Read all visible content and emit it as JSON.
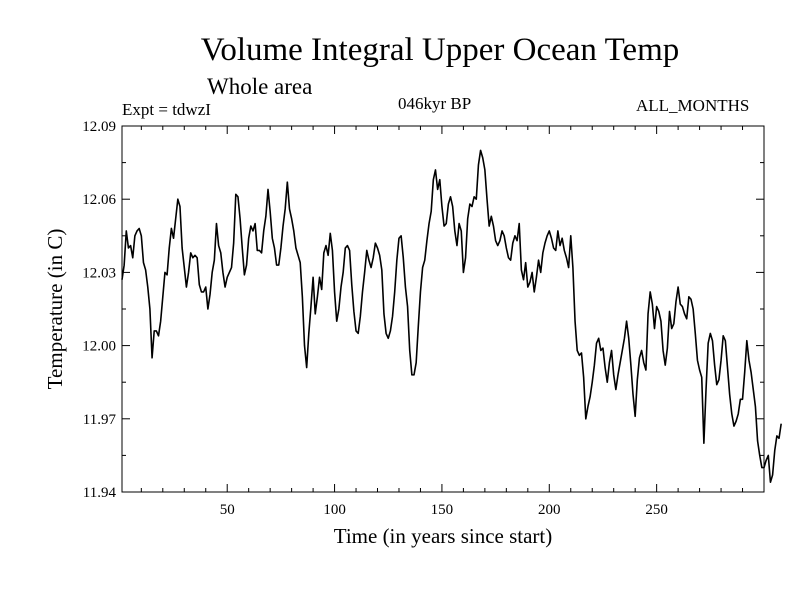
{
  "header": {
    "title": "Volume Integral Upper Ocean Temp",
    "subtitle": "Whole area",
    "left_label": "Expt = tdwzI",
    "center_label": "046kyr BP",
    "right_label": "ALL_MONTHS"
  },
  "chart_data": {
    "type": "line",
    "title": "Volume Integral Upper Ocean Temp",
    "subtitle": "Whole area",
    "xlabel": "Time (in years since start)",
    "ylabel": "Temperature (in C)",
    "xlim": [
      1,
      300
    ],
    "ylim": [
      11.94,
      12.09
    ],
    "x_ticks": [
      50,
      100,
      150,
      200,
      250
    ],
    "y_ticks": [
      11.94,
      11.97,
      12.0,
      12.03,
      12.06,
      12.09
    ],
    "y_tick_labels": [
      "11.94",
      "11.97",
      "12.00",
      "12.03",
      "12.06",
      "12.09"
    ],
    "grid": false,
    "line_color": "#000000",
    "series": [
      {
        "x_start": 1,
        "x_step": 1,
        "values": [
          12.027,
          12.033,
          12.047,
          12.04,
          12.041,
          12.036,
          12.045,
          12.047,
          12.048,
          12.045,
          12.034,
          12.031,
          12.024,
          12.015,
          11.995,
          12.006,
          12.006,
          12.004,
          12.01,
          12.02,
          12.03,
          12.029,
          12.04,
          12.048,
          12.044,
          12.052,
          12.06,
          12.057,
          12.04,
          12.032,
          12.024,
          12.03,
          12.038,
          12.036,
          12.037,
          12.036,
          12.025,
          12.022,
          12.022,
          12.024,
          12.015,
          12.021,
          12.03,
          12.035,
          12.05,
          12.041,
          12.038,
          12.03,
          12.024,
          12.028,
          12.03,
          12.032,
          12.042,
          12.062,
          12.061,
          12.052,
          12.04,
          12.029,
          12.033,
          12.044,
          12.049,
          12.047,
          12.05,
          12.039,
          12.039,
          12.038,
          12.047,
          12.053,
          12.064,
          12.055,
          12.044,
          12.04,
          12.033,
          12.033,
          12.04,
          12.049,
          12.056,
          12.067,
          12.056,
          12.052,
          12.047,
          12.04,
          12.037,
          12.034,
          12.02,
          12.0,
          11.991,
          12.005,
          12.016,
          12.028,
          12.013,
          12.02,
          12.028,
          12.023,
          12.038,
          12.041,
          12.037,
          12.046,
          12.039,
          12.022,
          12.01,
          12.015,
          12.024,
          12.03,
          12.04,
          12.041,
          12.039,
          12.025,
          12.014,
          12.006,
          12.005,
          12.012,
          12.022,
          12.03,
          12.039,
          12.035,
          12.032,
          12.036,
          12.042,
          12.04,
          12.037,
          12.031,
          12.013,
          12.005,
          12.003,
          12.006,
          12.012,
          12.022,
          12.035,
          12.044,
          12.045,
          12.036,
          12.024,
          12.016,
          11.998,
          11.988,
          11.988,
          11.993,
          12.008,
          12.022,
          12.032,
          12.035,
          12.043,
          12.05,
          12.055,
          12.068,
          12.072,
          12.064,
          12.068,
          12.057,
          12.049,
          12.05,
          12.058,
          12.061,
          12.057,
          12.047,
          12.041,
          12.05,
          12.047,
          12.03,
          12.036,
          12.052,
          12.058,
          12.057,
          12.061,
          12.06,
          12.074,
          12.08,
          12.077,
          12.072,
          12.06,
          12.049,
          12.053,
          12.049,
          12.043,
          12.041,
          12.043,
          12.047,
          12.045,
          12.04,
          12.036,
          12.035,
          12.042,
          12.045,
          12.043,
          12.05,
          12.031,
          12.027,
          12.034,
          12.024,
          12.026,
          12.03,
          12.022,
          12.028,
          12.035,
          12.03,
          12.038,
          12.042,
          12.045,
          12.047,
          12.044,
          12.04,
          12.039,
          12.047,
          12.041,
          12.044,
          12.039,
          12.036,
          12.032,
          12.045,
          12.032,
          12.01,
          11.998,
          11.996,
          11.997,
          11.987,
          11.97,
          11.975,
          11.979,
          11.985,
          11.992,
          12.001,
          12.003,
          11.998,
          11.999,
          11.991,
          11.985,
          11.993,
          11.998,
          11.988,
          11.982,
          11.988,
          11.993,
          11.998,
          12.003,
          12.01,
          12.003,
          11.992,
          11.98,
          11.971,
          11.986,
          11.995,
          11.998,
          11.993,
          11.99,
          12.013,
          12.022,
          12.017,
          12.007,
          12.016,
          12.014,
          12.01,
          11.998,
          11.992,
          11.999,
          12.014,
          12.007,
          12.009,
          12.018,
          12.024,
          12.017,
          12.016,
          12.013,
          12.011,
          12.02,
          12.019,
          12.015,
          12.005,
          11.994,
          11.99,
          11.987,
          11.96,
          11.982,
          12.001,
          12.005,
          12.002,
          11.992,
          11.984,
          11.986,
          11.994,
          12.004,
          12.002,
          11.991,
          11.98,
          11.972,
          11.967,
          11.969,
          11.972,
          11.978,
          11.978,
          11.989,
          12.002,
          11.994,
          11.989,
          11.982,
          11.975,
          11.961,
          11.955,
          11.95,
          11.95,
          11.953,
          11.955,
          11.944,
          11.947,
          11.957,
          11.963,
          11.962,
          11.968
        ]
      }
    ]
  }
}
